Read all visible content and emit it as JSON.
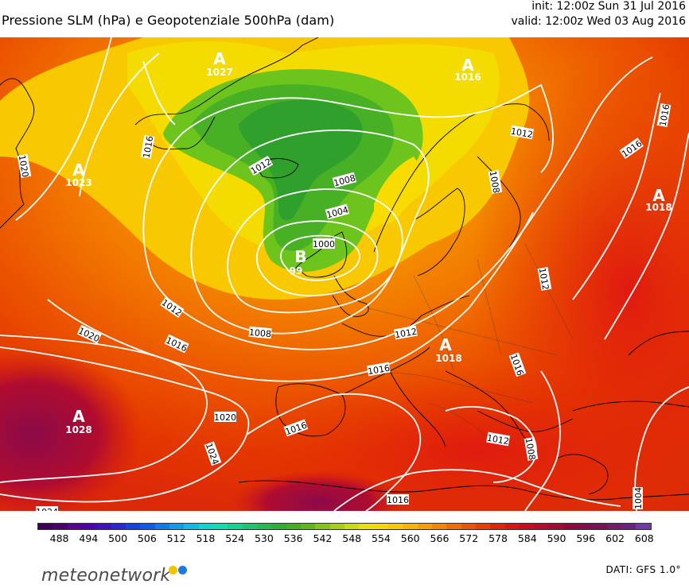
{
  "header": {
    "title": "Pressione SLM (hPa) e Geopotenziale 500hPa (dam)",
    "init": "init: 12:00z Sun 31 Jul 2016",
    "valid": "valid: 12:00z Wed 03 Aug 2016"
  },
  "pressure_centers": [
    {
      "symbol": "A",
      "value": "1027"
    },
    {
      "symbol": "A",
      "value": "1016"
    },
    {
      "symbol": "A",
      "value": "1023"
    },
    {
      "symbol": "A",
      "value": "1018"
    },
    {
      "symbol": "B",
      "value": "99"
    },
    {
      "symbol": "A",
      "value": "1018"
    },
    {
      "symbol": "A",
      "value": "1028"
    }
  ],
  "isobar_labels": [
    "1016",
    "1020",
    "1012",
    "1008",
    "1004",
    "1000",
    "1012",
    "1016",
    "1020",
    "1008",
    "1016",
    "1012",
    "1016",
    "1012",
    "1016",
    "1016",
    "1020",
    "1024",
    "1016",
    "1012",
    "1008",
    "1024",
    "1016",
    "1004",
    "1012",
    "1008"
  ],
  "colorbar": {
    "ticks": [
      "488",
      "494",
      "500",
      "506",
      "512",
      "518",
      "524",
      "530",
      "536",
      "542",
      "548",
      "554",
      "560",
      "566",
      "572",
      "578",
      "584",
      "590",
      "596",
      "602",
      "608"
    ],
    "colors": [
      "#3d0056",
      "#4b0070",
      "#5a0096",
      "#5200b4",
      "#4010c8",
      "#2a24dc",
      "#1640e8",
      "#0a5cf0",
      "#0a7cf2",
      "#0c9cf0",
      "#0cbce6",
      "#0cd6d0",
      "#0ce0b0",
      "#10d690",
      "#18c870",
      "#20bc50",
      "#2cb034",
      "#40b020",
      "#60b818",
      "#84c414",
      "#a8d010",
      "#cadc10",
      "#e8e00c",
      "#f6d800",
      "#fcc800",
      "#fcb400",
      "#fc9c00",
      "#f88400",
      "#f46c00",
      "#f05400",
      "#ec3c00",
      "#e42400",
      "#dc1410",
      "#cc0c1c",
      "#bc082c",
      "#a80834",
      "#94063c",
      "#840a48",
      "#7c1058",
      "#741c6c",
      "#6c2080",
      "#7038a8"
    ]
  },
  "logo": {
    "text": "meteonetwork",
    "dot_colors": [
      "#f2c400",
      "#1f7ae0"
    ]
  },
  "source": "DATI:  GFS  1.0°"
}
